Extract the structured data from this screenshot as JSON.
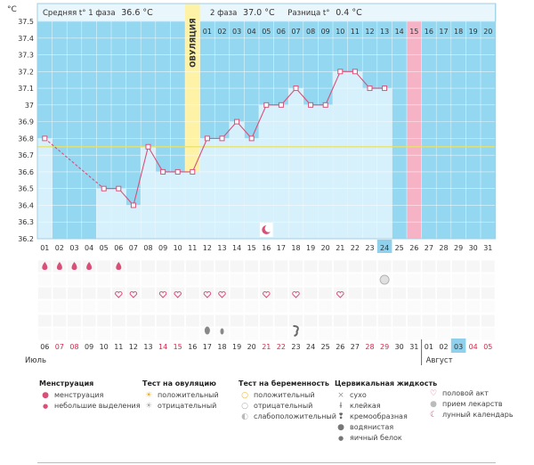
{
  "colors": {
    "blue_bg": "#93d7f0",
    "bar_fill": "#d7f1fc",
    "ovulation": "#fdf2a6",
    "marked_day": "#f7b3c6",
    "curve": "#d94f78",
    "coverline": "#e8e26a",
    "highlight_cell": "#8fd0ec"
  },
  "header": {
    "phase1_label": "Средняя t° 1 фаза",
    "phase1_value": "36.6 °С",
    "phase2_label": "2 фаза",
    "phase2_value": "37.0 °С",
    "diff_label": "Разница t°",
    "diff_value": "0.4 °С",
    "ovulation_label": "ОВУЛЯЦИЯ"
  },
  "cycle_days_top": [
    "01",
    "02",
    "03",
    "04",
    "05",
    "06",
    "07",
    "08",
    "09",
    "10",
    "11",
    "12",
    "13",
    "14",
    "15",
    "16",
    "17",
    "18",
    "19",
    "20"
  ],
  "cycle_days_bottom": [
    "01",
    "02",
    "03",
    "04",
    "05",
    "06",
    "07",
    "08",
    "09",
    "10",
    "11",
    "12",
    "13",
    "14",
    "15",
    "16",
    "17",
    "18",
    "19",
    "20",
    "21",
    "22",
    "23",
    "24",
    "25",
    "26",
    "27",
    "28",
    "29",
    "30",
    "31"
  ],
  "dates": [
    "06",
    "07",
    "08",
    "09",
    "10",
    "11",
    "12",
    "13",
    "14",
    "15",
    "16",
    "17",
    "18",
    "19",
    "20",
    "21",
    "22",
    "23",
    "24",
    "25",
    "26",
    "27",
    "28",
    "29",
    "30",
    "31",
    "01",
    "02",
    "03",
    "04",
    "05"
  ],
  "red_dates": [
    1,
    2,
    8,
    9,
    15,
    16,
    22,
    23,
    29,
    30
  ],
  "months": [
    "Июль",
    "Август"
  ],
  "chart_data": {
    "type": "line",
    "ylabel": "°C",
    "ylim": [
      36.2,
      37.5
    ],
    "y_ticks": [
      "36.2",
      "36.3",
      "36.4",
      "36.5",
      "36.6",
      "36.7",
      "36.8",
      "36.9",
      "37",
      "37.1",
      "37.2",
      "37.3",
      "37.4",
      "37.5"
    ],
    "coverline": 36.75,
    "ovulation_day": 11,
    "marked_day": 26,
    "highlighted_day": 24,
    "series": [
      {
        "x": [
          1,
          2,
          3,
          4,
          5,
          6,
          7,
          8,
          9,
          10,
          11,
          12,
          13,
          14,
          15,
          16,
          17,
          18,
          19,
          20,
          21,
          22,
          23,
          24,
          25
        ],
        "values": [
          36.8,
          null,
          null,
          null,
          36.5,
          36.5,
          36.4,
          36.75,
          36.6,
          36.6,
          36.6,
          36.8,
          36.8,
          36.9,
          36.8,
          37.0,
          37.0,
          37.1,
          37.0,
          37.0,
          37.2,
          37.2,
          37.1,
          37.1,
          null
        ]
      }
    ]
  },
  "symbols": {
    "menstruation_days": [
      1,
      2,
      3,
      4,
      6
    ],
    "intercourse_days": [
      6,
      7,
      9,
      10,
      12,
      13,
      16,
      18,
      21
    ],
    "test_pregnancy_days": [
      24
    ],
    "mucus_watery_days": [
      12
    ],
    "mucus_drop_days": [
      13
    ],
    "mucus_creamy_days": [
      18
    ],
    "lunar_day": 16
  },
  "legend": {
    "menstruation": {
      "title": "Менструация",
      "items": [
        "менструация",
        "небольшие выделения"
      ]
    },
    "ovulation_test": {
      "title": "Тест на овуляцию",
      "items": [
        "положительный",
        "отрицательный"
      ]
    },
    "pregnancy_test": {
      "title": "Тест на беременность",
      "items": [
        "положительный",
        "отрицательный",
        "слабоположительный"
      ]
    },
    "mucus": {
      "title": "Цервикальная жидкость",
      "items": [
        "сухо",
        "клейкая",
        "кремообразная",
        "водянистая",
        "яичный белок"
      ]
    },
    "other": {
      "items": [
        "половой акт",
        "прием лекарств",
        "лунный календарь"
      ]
    }
  }
}
